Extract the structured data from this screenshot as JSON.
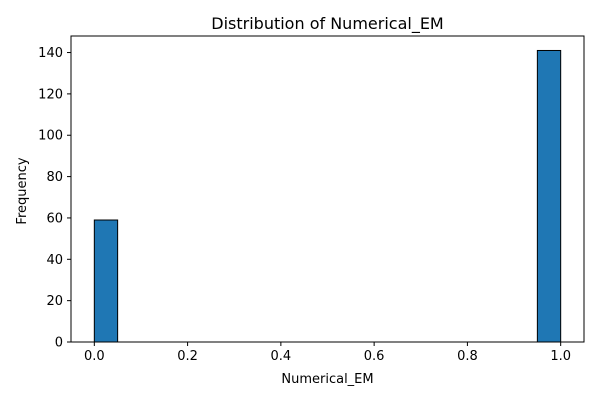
{
  "chart_data": {
    "type": "bar",
    "title": "Distribution of Numerical_EM",
    "xlabel": "Numerical_EM",
    "ylabel": "Frequency",
    "bins": [
      {
        "start": 0.0,
        "end": 0.05,
        "count": 59
      },
      {
        "start": 0.05,
        "end": 0.1,
        "count": 0
      },
      {
        "start": 0.1,
        "end": 0.15,
        "count": 0
      },
      {
        "start": 0.15,
        "end": 0.2,
        "count": 0
      },
      {
        "start": 0.2,
        "end": 0.25,
        "count": 0
      },
      {
        "start": 0.25,
        "end": 0.3,
        "count": 0
      },
      {
        "start": 0.3,
        "end": 0.35,
        "count": 0
      },
      {
        "start": 0.35,
        "end": 0.4,
        "count": 0
      },
      {
        "start": 0.4,
        "end": 0.45,
        "count": 0
      },
      {
        "start": 0.45,
        "end": 0.5,
        "count": 0
      },
      {
        "start": 0.5,
        "end": 0.55,
        "count": 0
      },
      {
        "start": 0.55,
        "end": 0.6,
        "count": 0
      },
      {
        "start": 0.6,
        "end": 0.65,
        "count": 0
      },
      {
        "start": 0.65,
        "end": 0.7,
        "count": 0
      },
      {
        "start": 0.7,
        "end": 0.75,
        "count": 0
      },
      {
        "start": 0.75,
        "end": 0.8,
        "count": 0
      },
      {
        "start": 0.8,
        "end": 0.85,
        "count": 0
      },
      {
        "start": 0.85,
        "end": 0.9,
        "count": 0
      },
      {
        "start": 0.9,
        "end": 0.95,
        "count": 0
      },
      {
        "start": 0.95,
        "end": 1.0,
        "count": 141
      }
    ],
    "xlim": [
      -0.05,
      1.05
    ],
    "ylim": [
      0,
      148
    ],
    "xticks": [
      0.0,
      0.2,
      0.4,
      0.6,
      0.8,
      1.0
    ],
    "xtick_labels": [
      "0.0",
      "0.2",
      "0.4",
      "0.6",
      "0.8",
      "1.0"
    ],
    "yticks": [
      0,
      20,
      40,
      60,
      80,
      100,
      120,
      140
    ],
    "ytick_labels": [
      "0",
      "20",
      "40",
      "60",
      "80",
      "100",
      "120",
      "140"
    ],
    "grid": false,
    "bar_color": "#1f77b4",
    "bar_edge_color": "#000000"
  }
}
